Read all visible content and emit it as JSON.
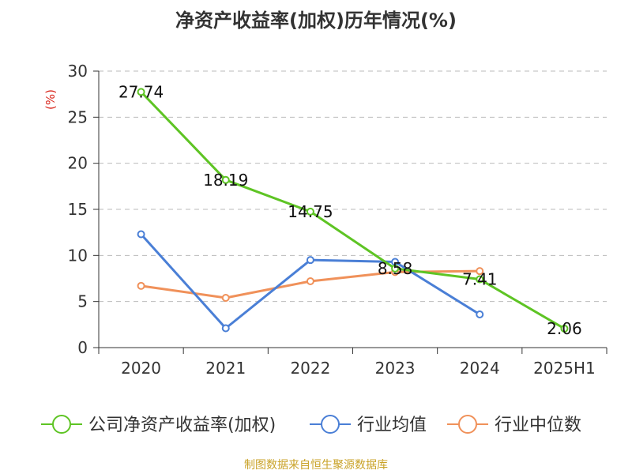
{
  "chart_data": {
    "type": "line",
    "title": "净资产收益率(加权)历年情况(%)",
    "ylabel": "(%)",
    "xlabel": "",
    "categories": [
      "2020",
      "2021",
      "2022",
      "2023",
      "2024",
      "2025H1"
    ],
    "ylim": [
      0,
      30
    ],
    "yticks": [
      0,
      5,
      10,
      15,
      20,
      25,
      30
    ],
    "grid": true,
    "legend_position": "bottom",
    "series": [
      {
        "name": "公司净资产收益率(加权)",
        "color": "#5ec424",
        "values": [
          27.74,
          18.19,
          14.75,
          8.58,
          7.41,
          2.06
        ],
        "labels": [
          "27.74",
          "18.19",
          "14.75",
          "8.58",
          "7.41",
          "2.06"
        ]
      },
      {
        "name": "行业均值",
        "color": "#4a7fd6",
        "values": [
          12.3,
          2.1,
          9.5,
          9.3,
          3.6,
          null
        ]
      },
      {
        "name": "行业中位数",
        "color": "#f0915a",
        "values": [
          6.7,
          5.4,
          7.2,
          8.2,
          8.3,
          null
        ]
      }
    ]
  },
  "source_note": "制图数据来自恒生聚源数据库"
}
